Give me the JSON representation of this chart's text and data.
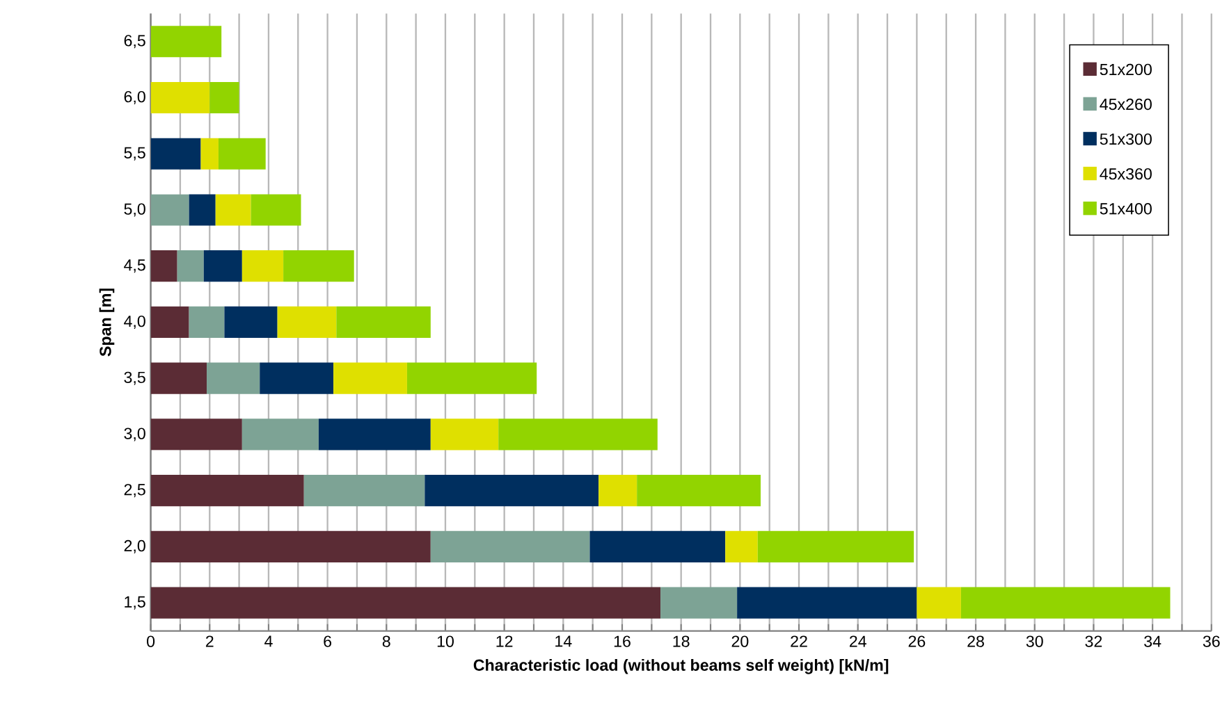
{
  "chart_data": {
    "type": "bar",
    "orientation": "horizontal",
    "stacked": true,
    "xlabel": "Characteristic load (without beams self weight) [kN/m]",
    "ylabel": "Span [m]",
    "categories": [
      "6,5",
      "6,0",
      "5,5",
      "5,0",
      "4,5",
      "4,0",
      "3,5",
      "3,0",
      "2,5",
      "2,0",
      "1,5"
    ],
    "series": [
      {
        "name": "51x200",
        "color": "#5b2c35",
        "values": [
          null,
          null,
          null,
          null,
          0.9,
          1.3,
          1.9,
          3.1,
          5.2,
          9.5,
          17.3
        ]
      },
      {
        "name": "45x260",
        "color": "#7da395",
        "values": [
          null,
          null,
          null,
          1.3,
          0.9,
          1.2,
          1.8,
          2.6,
          4.1,
          5.4,
          2.6
        ]
      },
      {
        "name": "51x300",
        "color": "#002f5f",
        "values": [
          null,
          null,
          1.7,
          0.9,
          1.3,
          1.8,
          2.5,
          3.8,
          5.9,
          4.6,
          6.1
        ]
      },
      {
        "name": "45x360",
        "color": "#dfe000",
        "values": [
          null,
          2.0,
          0.6,
          1.2,
          1.4,
          2.0,
          2.5,
          2.3,
          1.3,
          1.1,
          1.5
        ]
      },
      {
        "name": "51x400",
        "color": "#92d400",
        "values": [
          2.4,
          1.0,
          1.6,
          1.7,
          2.4,
          3.2,
          4.4,
          5.4,
          4.2,
          5.3,
          7.1
        ]
      }
    ],
    "xlim": [
      0,
      36
    ],
    "xticks": [
      0,
      {
        "value": 1,
        "label": null
      },
      2,
      {
        "value": 3,
        "label": null
      },
      4,
      {
        "value": 5,
        "label": null
      },
      6,
      {
        "value": 7,
        "label": null
      },
      8,
      {
        "value": 9,
        "label": null
      },
      10,
      {
        "value": 11,
        "label": null
      },
      12,
      {
        "value": 13,
        "label": null
      },
      14,
      {
        "value": 15,
        "label": null
      },
      16,
      {
        "value": 17,
        "label": null
      },
      18,
      {
        "value": 19,
        "label": null
      },
      20,
      {
        "value": 21,
        "label": null
      },
      22,
      {
        "value": 23,
        "label": null
      },
      24,
      {
        "value": 25,
        "label": null
      },
      26,
      {
        "value": 27,
        "label": null
      },
      28,
      {
        "value": 29,
        "label": null
      },
      30,
      {
        "value": 31,
        "label": null
      },
      32,
      {
        "value": 33,
        "label": null
      },
      34,
      {
        "value": 35,
        "label": null
      },
      36
    ],
    "grid": "x",
    "legend": "top right"
  }
}
